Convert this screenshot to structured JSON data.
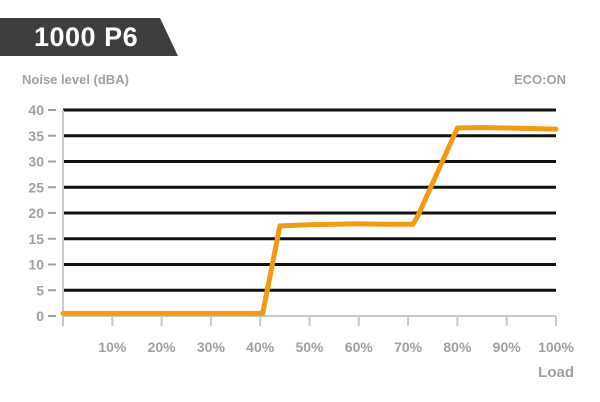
{
  "header": {
    "title": "1000 P6",
    "mode": "ECO:ON"
  },
  "chart_data": {
    "type": "line",
    "ylabel": "Noise level (dBA)",
    "xlabel": "Load",
    "x_unit": "%",
    "xlim": [
      0,
      100
    ],
    "ylim": [
      0,
      40
    ],
    "x_ticks": [
      "10%",
      "20%",
      "30%",
      "40%",
      "50%",
      "60%",
      "70%",
      "80%",
      "90%",
      "100%"
    ],
    "y_ticks": [
      "0",
      "5",
      "10",
      "15",
      "20",
      "25",
      "30",
      "35",
      "40"
    ],
    "grid": true,
    "series": [
      {
        "color": "#f39a14",
        "x": [
          0,
          10,
          20,
          30,
          40,
          40.5,
          44,
          50,
          60,
          66,
          71,
          72,
          80,
          85,
          90,
          100
        ],
        "y": [
          0.5,
          0.5,
          0.5,
          0.5,
          0.5,
          0.5,
          17.5,
          17.7,
          17.9,
          17.8,
          17.8,
          19.5,
          36.5,
          36.6,
          36.5,
          36.3
        ]
      }
    ]
  }
}
